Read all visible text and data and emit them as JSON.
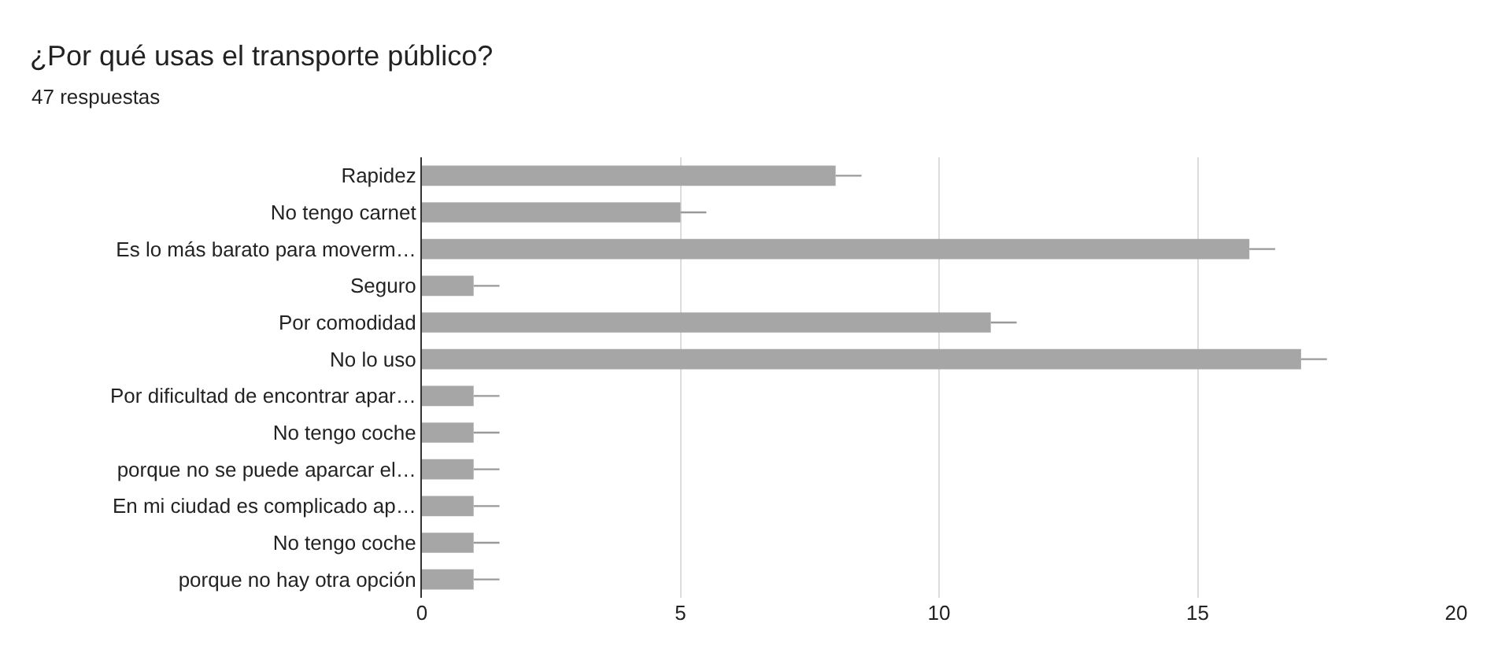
{
  "chart_data": {
    "type": "bar",
    "orientation": "horizontal",
    "title": "¿Por qué usas el transporte público?",
    "subtitle": "47 respuestas",
    "categories": [
      "Rapidez",
      "No tengo carnet",
      "Es lo más barato para moverm…",
      "Seguro",
      "Por comodidad",
      "No lo uso",
      "Por dificultad de encontrar apar…",
      "No tengo coche",
      "porque no se puede aparcar el…",
      "En mi ciudad es complicado ap…",
      "No tengo coche",
      "porque no hay otra opción"
    ],
    "values": [
      8,
      5,
      16,
      1,
      11,
      17,
      1,
      1,
      1,
      1,
      1,
      1
    ],
    "errors": [
      [
        8,
        8.5
      ],
      [
        5,
        5.5
      ],
      [
        16,
        16.5
      ],
      [
        1,
        1.5
      ],
      [
        11,
        11.5
      ],
      [
        17,
        17.5
      ],
      [
        1,
        1.5
      ],
      [
        1,
        1.5
      ],
      [
        1,
        1.5
      ],
      [
        1,
        1.5
      ],
      [
        1,
        1.5
      ],
      [
        1,
        1.5
      ]
    ],
    "color": "#a6a6a6",
    "xlim": [
      0,
      20
    ],
    "xticks": [
      0,
      5,
      10,
      15,
      20
    ],
    "grid": "x"
  }
}
